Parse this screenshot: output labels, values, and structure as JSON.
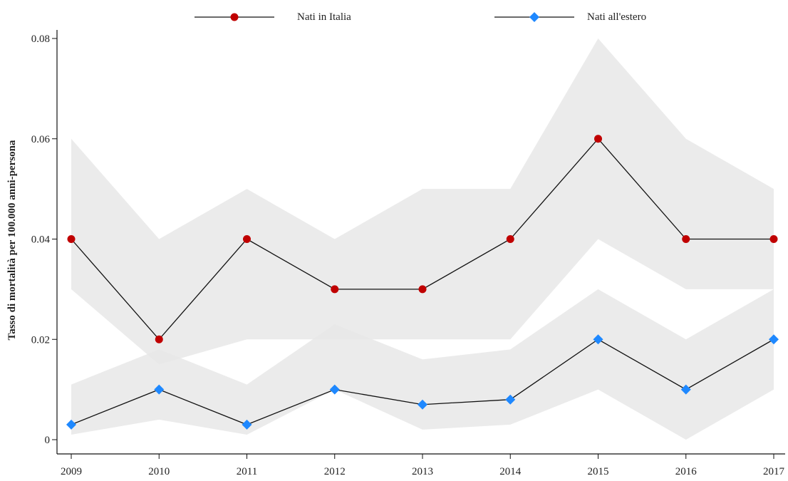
{
  "chart_data": {
    "type": "line",
    "title": "",
    "xlabel": "",
    "ylabel": "Tasso di mortalità per 100.000 anni-persona",
    "x": [
      "2009",
      "2010",
      "2011",
      "2012",
      "2013",
      "2014",
      "2015",
      "2016",
      "2017"
    ],
    "ylim": [
      0,
      0.08
    ],
    "y_ticks": [
      "0",
      "0.02",
      "0.04",
      "0.06",
      "0.08"
    ],
    "grid": false,
    "legend_position": "top",
    "series": [
      {
        "name": "Nati in Italia",
        "marker": "circle",
        "color": "#c00000",
        "values": [
          0.04,
          0.02,
          0.04,
          0.03,
          0.03,
          0.04,
          0.06,
          0.04,
          0.04
        ],
        "ci_lower": [
          0.03,
          0.015,
          0.02,
          0.02,
          0.02,
          0.02,
          0.04,
          0.03,
          0.03
        ],
        "ci_upper": [
          0.06,
          0.04,
          0.05,
          0.04,
          0.05,
          0.05,
          0.08,
          0.06,
          0.05
        ]
      },
      {
        "name": "Nati all'estero",
        "marker": "diamond",
        "color": "#1e88ff",
        "values": [
          0.003,
          0.01,
          0.003,
          0.01,
          0.007,
          0.008,
          0.02,
          0.01,
          0.02
        ],
        "ci_lower": [
          0.001,
          0.004,
          0.001,
          0.01,
          0.002,
          0.003,
          0.01,
          0.0,
          0.01
        ],
        "ci_upper": [
          0.011,
          0.018,
          0.011,
          0.023,
          0.016,
          0.018,
          0.03,
          0.02,
          0.03
        ]
      }
    ],
    "ci_color": "#e8e8e8",
    "line_color": "#111111"
  }
}
